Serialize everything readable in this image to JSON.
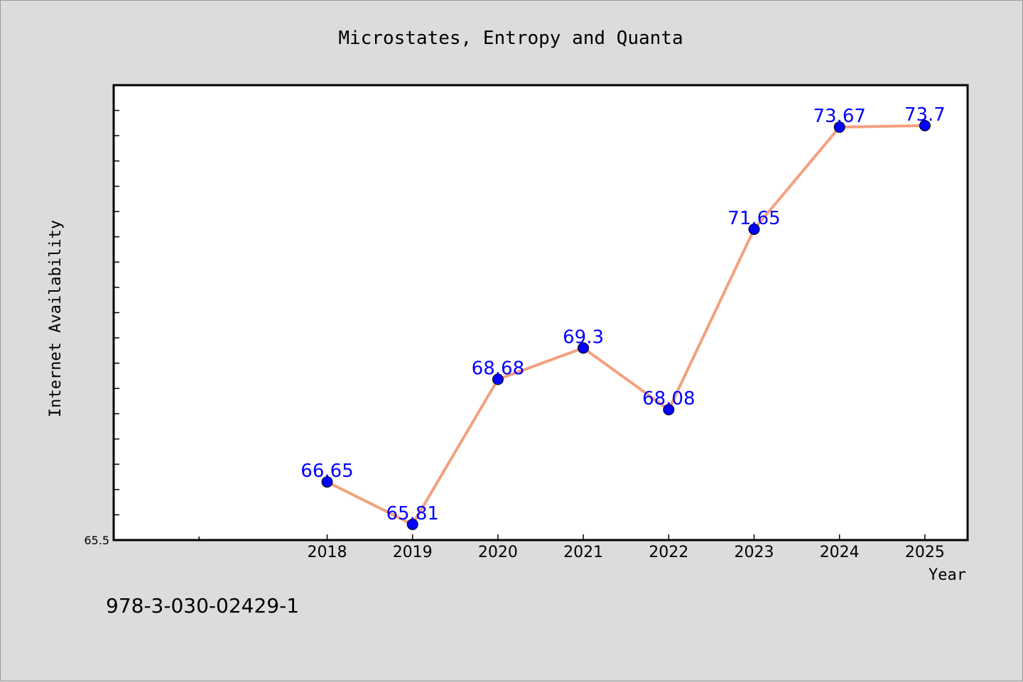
{
  "footer": {
    "isbn": "978-3-030-02429-1"
  },
  "colors": {
    "background": "#dcdcdc",
    "plot_background": "#ffffff",
    "line": "#f4a07e",
    "marker": "#0000ff",
    "data_label": "#0000ff"
  },
  "chart_data": {
    "type": "line",
    "title": "Microstates, Entropy and Quanta",
    "xlabel": "Year",
    "ylabel": "Internet Availability",
    "x": [
      "2018",
      "2019",
      "2020",
      "2021",
      "2022",
      "2023",
      "2024",
      "2025"
    ],
    "series": [
      {
        "values": [
          66.65,
          65.81,
          68.68,
          69.3,
          68.08,
          71.65,
          73.67,
          73.7
        ]
      }
    ],
    "data_labels": [
      "66.65",
      "65.81",
      "68.68",
      "69.3",
      "68.08",
      "71.65",
      "73.67",
      "73.7"
    ],
    "ylim": [
      65.5,
      74.5
    ],
    "yticks_labeled": [
      "65.5"
    ],
    "x_extra_ticks": [
      "2015.5",
      "2016.5"
    ],
    "xlim": [
      2015.5,
      2025.5
    ],
    "grid": false,
    "legend": "none",
    "marker": "circle"
  }
}
